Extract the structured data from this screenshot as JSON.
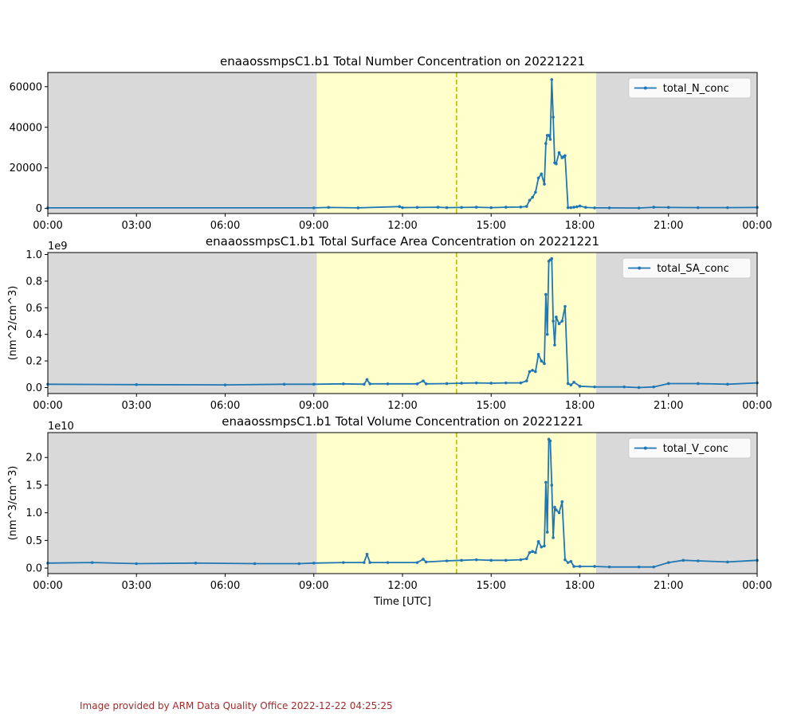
{
  "footer": "Image provided by ARM Data Quality Office 2022-12-22 04:25:25",
  "colors": {
    "line": "#1f77b4",
    "night_shade": "#d9d9d9",
    "day_shade": "#ffffcc",
    "noon_line": "#b8b800"
  },
  "chart_data": [
    {
      "type": "line",
      "title": "enaaossmpsC1.b1 Total Number Concentration on 20221221",
      "xlabel": "",
      "ylabel": "",
      "offset_label": "",
      "x_ticks": [
        "00:00",
        "03:00",
        "06:00",
        "09:00",
        "12:00",
        "15:00",
        "18:00",
        "21:00",
        "00:00"
      ],
      "x_range_hours": [
        0,
        24
      ],
      "y_ticks": [
        0,
        20000,
        40000,
        60000
      ],
      "y_tick_labels": [
        "0",
        "20000",
        "40000",
        "60000"
      ],
      "ylim": [
        -2500,
        67000
      ],
      "legend": "total_N_conc",
      "legend_loc": "upper right",
      "day_shading_hours": [
        9.1,
        18.55
      ],
      "solar_noon_hour": 13.83,
      "series": [
        {
          "name": "total_N_conc",
          "x": [
            0,
            9,
            9.5,
            10.5,
            11.9,
            12,
            12.5,
            13.2,
            13.5,
            14,
            14.5,
            15,
            15.5,
            16,
            16.2,
            16.3,
            16.4,
            16.5,
            16.6,
            16.7,
            16.8,
            16.85,
            16.9,
            16.95,
            17,
            17.05,
            17.1,
            17.15,
            17.2,
            17.3,
            17.4,
            17.45,
            17.5,
            17.6,
            17.7,
            17.8,
            17.9,
            18,
            18.2,
            18.5,
            19,
            20,
            20.5,
            21,
            22,
            23,
            24
          ],
          "y": [
            300,
            300,
            500,
            300,
            900,
            400,
            500,
            600,
            400,
            500,
            600,
            400,
            600,
            700,
            1000,
            4000,
            5500,
            8000,
            15000,
            17000,
            12000,
            32000,
            36000,
            36000,
            34000,
            63500,
            45000,
            22500,
            22000,
            27500,
            25000,
            25500,
            26000,
            400,
            400,
            600,
            800,
            1200,
            500,
            300,
            300,
            200,
            600,
            500,
            400,
            400,
            500
          ]
        }
      ]
    },
    {
      "type": "line",
      "title": "enaaossmpsC1.b1 Total Surface Area Concentration on 20221221",
      "xlabel": "",
      "ylabel": "(nm^2/cm^3)",
      "offset_label": "1e9",
      "x_ticks": [
        "00:00",
        "03:00",
        "06:00",
        "09:00",
        "12:00",
        "15:00",
        "18:00",
        "21:00",
        "00:00"
      ],
      "x_range_hours": [
        0,
        24
      ],
      "y_ticks": [
        0,
        0.2,
        0.4,
        0.6,
        0.8,
        1.0
      ],
      "y_tick_labels": [
        "0.0",
        "0.2",
        "0.4",
        "0.6",
        "0.8",
        "1.0"
      ],
      "ylim": [
        -0.045,
        1.015
      ],
      "legend": "total_SA_conc",
      "legend_loc": "upper right",
      "day_shading_hours": [
        9.1,
        18.55
      ],
      "solar_noon_hour": 13.83,
      "series": [
        {
          "name": "total_SA_conc",
          "x": [
            0,
            3,
            6,
            8,
            9,
            10,
            10.7,
            10.8,
            10.9,
            11.5,
            12.5,
            12.7,
            12.8,
            13.5,
            14,
            14.5,
            15,
            15.5,
            16,
            16.2,
            16.3,
            16.4,
            16.5,
            16.6,
            16.7,
            16.8,
            16.85,
            16.9,
            16.95,
            17,
            17.05,
            17.1,
            17.15,
            17.2,
            17.3,
            17.4,
            17.5,
            17.6,
            17.7,
            17.8,
            18,
            18.5,
            19.5,
            20,
            20.5,
            21,
            22,
            23,
            24
          ],
          "y": [
            0.025,
            0.022,
            0.02,
            0.025,
            0.025,
            0.028,
            0.025,
            0.06,
            0.028,
            0.028,
            0.028,
            0.05,
            0.028,
            0.03,
            0.033,
            0.035,
            0.033,
            0.035,
            0.035,
            0.05,
            0.12,
            0.13,
            0.12,
            0.25,
            0.2,
            0.18,
            0.7,
            0.4,
            0.95,
            0.96,
            0.97,
            0.5,
            0.32,
            0.53,
            0.48,
            0.5,
            0.61,
            0.03,
            0.02,
            0.04,
            0.01,
            0.005,
            0.005,
            0.0,
            0.005,
            0.03,
            0.03,
            0.025,
            0.035
          ]
        }
      ]
    },
    {
      "type": "line",
      "title": "enaaossmpsC1.b1 Total Volume Concentration on 20221221",
      "xlabel": "Time [UTC]",
      "ylabel": "(nm^3/cm^3)",
      "offset_label": "1e10",
      "x_ticks": [
        "00:00",
        "03:00",
        "06:00",
        "09:00",
        "12:00",
        "15:00",
        "18:00",
        "21:00",
        "00:00"
      ],
      "x_range_hours": [
        0,
        24
      ],
      "y_ticks": [
        0,
        0.5,
        1.0,
        1.5,
        2.0
      ],
      "y_tick_labels": [
        "0.0",
        "0.5",
        "1.0",
        "1.5",
        "2.0"
      ],
      "ylim": [
        -0.1,
        2.45
      ],
      "legend": "total_V_conc",
      "legend_loc": "upper right",
      "day_shading_hours": [
        9.1,
        18.55
      ],
      "solar_noon_hour": 13.83,
      "series": [
        {
          "name": "total_V_conc",
          "x": [
            0,
            1.5,
            3,
            5,
            7,
            8.5,
            9,
            10,
            10.7,
            10.8,
            10.9,
            11.5,
            12.5,
            12.7,
            12.8,
            13.5,
            14,
            14.5,
            15,
            15.5,
            16,
            16.2,
            16.3,
            16.4,
            16.5,
            16.6,
            16.7,
            16.8,
            16.85,
            16.9,
            16.95,
            17,
            17.05,
            17.1,
            17.15,
            17.2,
            17.3,
            17.4,
            17.5,
            17.6,
            17.7,
            17.8,
            18,
            18.5,
            19,
            20,
            20.5,
            21,
            21.5,
            22,
            23,
            24
          ],
          "y": [
            0.09,
            0.1,
            0.08,
            0.09,
            0.08,
            0.08,
            0.09,
            0.1,
            0.1,
            0.25,
            0.1,
            0.1,
            0.1,
            0.16,
            0.11,
            0.13,
            0.14,
            0.15,
            0.14,
            0.14,
            0.15,
            0.17,
            0.28,
            0.3,
            0.28,
            0.48,
            0.38,
            0.4,
            1.55,
            0.65,
            2.33,
            2.3,
            1.5,
            0.55,
            1.1,
            1.05,
            1.0,
            1.2,
            0.15,
            0.1,
            0.12,
            0.03,
            0.03,
            0.03,
            0.02,
            0.02,
            0.02,
            0.1,
            0.14,
            0.13,
            0.11,
            0.14
          ]
        }
      ]
    }
  ]
}
